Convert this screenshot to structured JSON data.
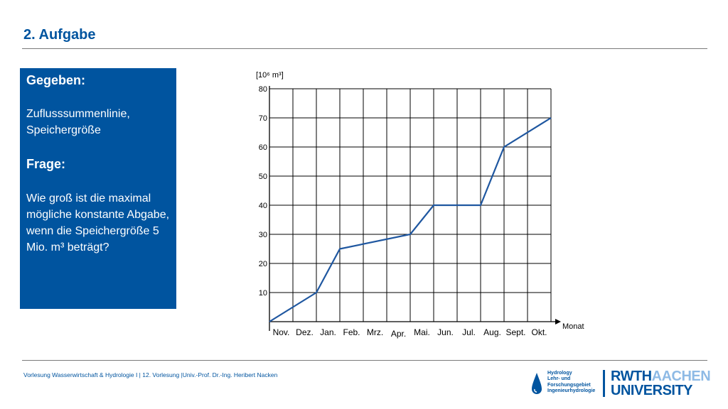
{
  "slide": {
    "title": "2. Aufgabe",
    "given_heading": "Gegeben:",
    "given_text": "Zuflusssummenlinie, Speichergröße",
    "question_heading": "Frage:",
    "question_text": "Wie groß ist die maximal mögliche konstante Abgabe, wenn die Speichergröße 5 Mio. m³ beträgt?"
  },
  "footer": {
    "text": "Vorlesung Wasserwirtschaft & Hydrologie I | 12. Vorlesung |Univ.-Prof. Dr.-Ing. Heribert Nacken",
    "logo_hyd_lines": [
      "Hydrology",
      "Lehr- und",
      "Forschungsgebiet",
      "Ingenieurhydrologie"
    ],
    "logo_rwth_dark": "RWTH",
    "logo_rwth_light": "AACHEN",
    "logo_university": "UNIVERSITY"
  },
  "colors": {
    "brand_blue": "#00549f",
    "light_blue": "#8ebae5",
    "line_color": "#1f57a0"
  },
  "chart_data": {
    "type": "line",
    "ylabel": "[10⁶ m³]",
    "xlabel": "Monat",
    "yticks": [
      10,
      20,
      30,
      40,
      50,
      60,
      70,
      80
    ],
    "ylim": [
      0,
      80
    ],
    "month_labels": [
      "Nov.",
      "Dez.",
      "Jan.",
      "Feb.",
      "Mrz.",
      "Apr.",
      "Mai.",
      "Jun.",
      "Jul.",
      "Aug.",
      "Sept.",
      "Okt."
    ],
    "x": [
      0,
      2,
      3,
      6,
      7,
      9,
      10,
      12
    ],
    "y": [
      0,
      10,
      25,
      30,
      40,
      40,
      60,
      70
    ],
    "grid": true
  }
}
